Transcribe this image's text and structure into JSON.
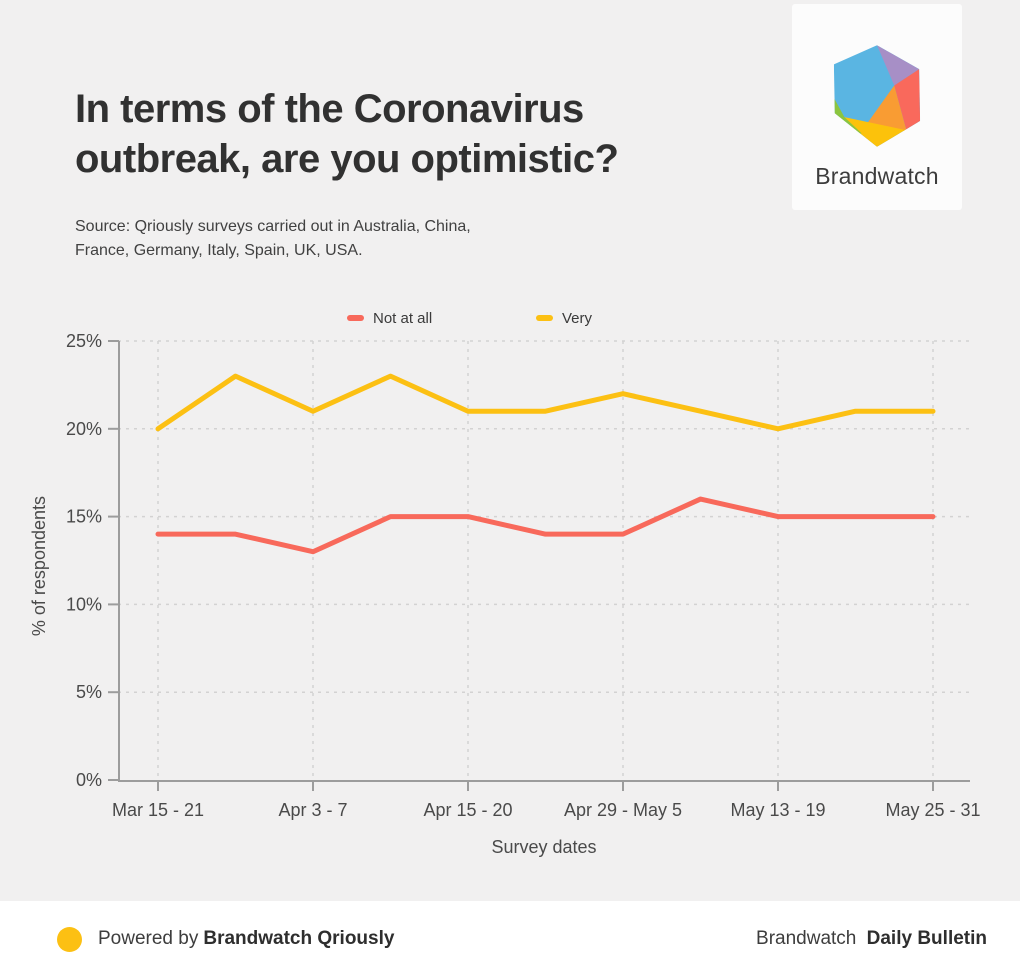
{
  "header": {
    "title_line1": "In terms of the Coronavirus",
    "title_line2": "outbreak, are you optimistic?",
    "source_line1": "Source: Qriously surveys carried out in Australia, China,",
    "source_line2": "France, Germany, Italy, Spain, UK, USA.",
    "logo": {
      "wordmark": "Brandwatch",
      "hex_colors": {
        "blue": "#5ab5e2",
        "purple": "#a78fc6",
        "salmon": "#f9695c",
        "orange": "#f99c33",
        "yellow": "#fcc20b",
        "green": "#8bc53f"
      }
    }
  },
  "chart_data": {
    "type": "line",
    "title": "In terms of the Coronavirus outbreak, are you optimistic?",
    "xlabel": "Survey dates",
    "ylabel": "% of respondents",
    "ylim": [
      0,
      25
    ],
    "yticks": [
      0,
      5,
      10,
      15,
      20,
      25
    ],
    "ytick_labels": [
      "0%",
      "5%",
      "10%",
      "15%",
      "20%",
      "25%"
    ],
    "x_count": 11,
    "xtick_indices": [
      0,
      2,
      4,
      6,
      8,
      10
    ],
    "xtick_labels": [
      "Mar 15 - 21",
      "Apr 3 - 7",
      "Apr 15 - 20",
      "Apr 29 - May 5",
      "May 13 - 19",
      "May 25 - 31"
    ],
    "grid": "dashed",
    "legend_position": "top-center",
    "series": [
      {
        "name": "Not at all",
        "color": "#f8695b",
        "values": [
          14,
          14,
          13,
          15,
          15,
          14,
          14,
          16,
          15,
          15,
          15
        ]
      },
      {
        "name": "Very",
        "color": "#fcc013",
        "values": [
          20,
          23,
          21,
          23,
          21,
          21,
          22,
          21,
          20,
          21,
          21
        ]
      }
    ]
  },
  "footer": {
    "dot_color": "#fcc013",
    "powered_by_prefix": "Powered by",
    "powered_by_brand": "Brandwatch Qriously",
    "bulletin_prefix": "Brandwatch",
    "bulletin_name": "Daily Bulletin"
  }
}
